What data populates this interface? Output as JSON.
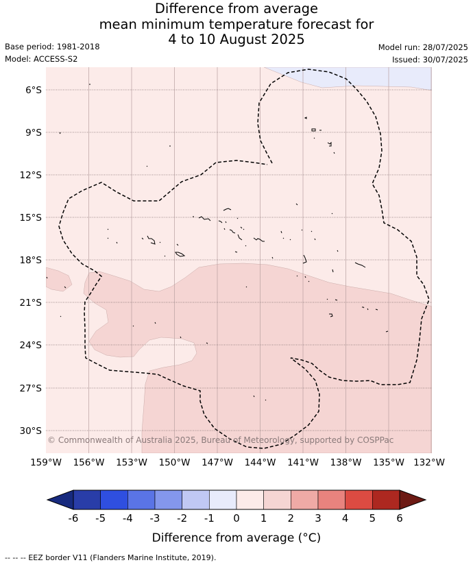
{
  "title": {
    "line1": "Difference from average",
    "line2": "mean minimum temperature forecast for",
    "line3": "4 to 10 August 2025"
  },
  "meta_left": {
    "base_period": "Base period: 1981-2018",
    "model": "Model: ACCESS-S2"
  },
  "meta_right": {
    "model_run": "Model run: 28/07/2025",
    "issued": "Issued: 30/07/2025"
  },
  "map": {
    "lat_labels": [
      "6°S",
      "9°S",
      "12°S",
      "15°S",
      "18°S",
      "21°S",
      "24°S",
      "27°S",
      "30°S"
    ],
    "lon_labels": [
      "159°W",
      "156°W",
      "153°W",
      "150°W",
      "147°W",
      "144°W",
      "141°W",
      "138°W",
      "135°W",
      "132°W"
    ],
    "copyright": "© Commonwealth of Australia 2025, Bureau of Meteorology, supported by COSPPac",
    "fill_colors": {
      "band_-1_0": "#e8ebfb",
      "band_0_1": "#fcebe9",
      "band_1_2": "#f5d5d3"
    }
  },
  "colorbar": {
    "ticks": [
      "-6",
      "-5",
      "-4",
      "-3",
      "-2",
      "-1",
      "0",
      "1",
      "2",
      "3",
      "4",
      "5",
      "6"
    ],
    "colors": [
      "#293da8",
      "#2f4fe0",
      "#5a74e6",
      "#8497ec",
      "#c0c8f4",
      "#e8ebfb",
      "#fcebe9",
      "#f5d5d3",
      "#efaaa6",
      "#e8837e",
      "#dc4b42",
      "#ad2820"
    ],
    "under_color": "#172a7e",
    "over_color": "#6d1a14",
    "label": "Difference from average (°C)"
  },
  "footer": {
    "legend_dash": "--  --  --",
    "text": "EEZ border V11 (Flanders Marine Institute, 2019)."
  }
}
